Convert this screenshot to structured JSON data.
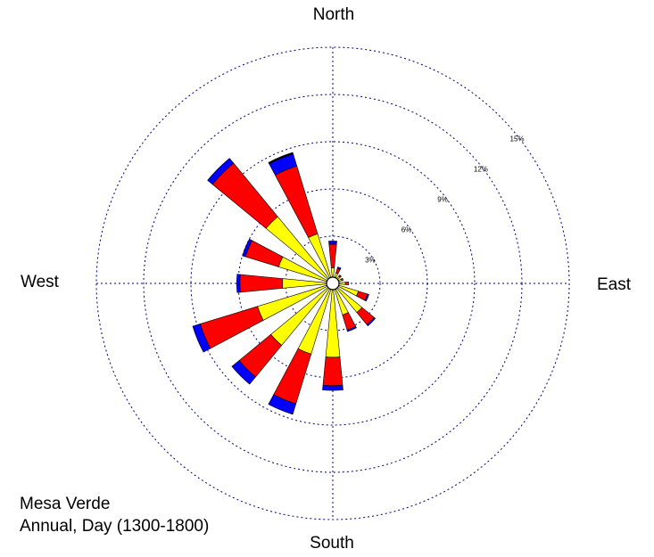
{
  "chart_data": {
    "type": "wind-rose",
    "caption": [
      "Mesa Verde",
      "Annual, Day (1300-1800)"
    ],
    "directions": [
      "North",
      "East",
      "South",
      "West"
    ],
    "ring_labels": [
      "3%",
      "6%",
      "9%",
      "12%",
      "15%"
    ],
    "rings": [
      3,
      6,
      9,
      12,
      15
    ],
    "rmax": 15,
    "calm_circle": true,
    "colors": [
      "#ffff00",
      "#ff0000",
      "#0000ff",
      "#000000"
    ],
    "sectors": [
      {
        "dir": 0,
        "values": [
          0.6,
          1.5,
          0.2,
          0.0
        ]
      },
      {
        "dir": 22.5,
        "values": [
          0.3,
          0.3,
          0.1,
          0.0
        ]
      },
      {
        "dir": 45,
        "values": [
          0.2,
          0.1,
          0.0,
          0.0
        ]
      },
      {
        "dir": 67.5,
        "values": [
          0.2,
          0.1,
          0.0,
          0.0
        ]
      },
      {
        "dir": 90,
        "values": [
          0.4,
          0.2,
          0.0,
          0.0
        ]
      },
      {
        "dir": 112.5,
        "values": [
          1.3,
          0.6,
          0.1,
          0.0
        ]
      },
      {
        "dir": 135,
        "values": [
          2.0,
          1.0,
          0.1,
          0.0
        ]
      },
      {
        "dir": 157.5,
        "values": [
          1.7,
          1.0,
          0.1,
          0.0
        ]
      },
      {
        "dir": 180,
        "values": [
          4.3,
          1.8,
          0.3,
          0.0
        ]
      },
      {
        "dir": 202.5,
        "values": [
          4.3,
          3.3,
          0.7,
          0.0
        ]
      },
      {
        "dir": 225,
        "values": [
          4.7,
          2.6,
          0.6,
          0.0
        ]
      },
      {
        "dir": 247.5,
        "values": [
          4.6,
          3.8,
          0.5,
          0.0
        ]
      },
      {
        "dir": 270,
        "values": [
          2.8,
          2.7,
          0.2,
          0.0
        ]
      },
      {
        "dir": 292.5,
        "values": [
          3.2,
          2.2,
          0.2,
          0.0
        ]
      },
      {
        "dir": 315,
        "values": [
          5.1,
          4.4,
          0.4,
          0.0
        ]
      },
      {
        "dir": 337.5,
        "values": [
          2.9,
          4.5,
          0.8,
          0.1
        ]
      }
    ]
  }
}
